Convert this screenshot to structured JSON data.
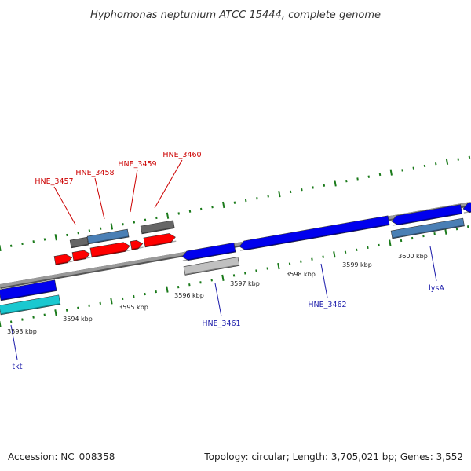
{
  "title": "Hyphomonas neptunium ATCC 15444, complete genome",
  "footer": {
    "accession": "Accession: NC_008358",
    "summary": "Topology: circular; Length: 3,705,021 bp; Genes: 3,552"
  },
  "ticks": [
    "3593 kbp",
    "3594 kbp",
    "3595 kbp",
    "3596 kbp",
    "3597 kbp",
    "3598 kbp",
    "3599 kbp",
    "3600 kbp"
  ],
  "labels": {
    "forward": [
      "HNE_3457",
      "HNE_3458",
      "HNE_3459",
      "HNE_3460"
    ],
    "reverse": [
      "tkt",
      "HNE_3461",
      "HNE_3462",
      "lysA"
    ]
  },
  "colors": {
    "forward_label": "#cc0000",
    "reverse_label": "#1a1aaa",
    "forward_cds": "#ff0000",
    "reverse_cds": "#0000ee",
    "gene_grey": "#666666",
    "steelblue": "#4a7fb5",
    "cyan": "#1ac8d0",
    "light_grey": "#c0c0c0",
    "backbone": "#888888",
    "tick_mark": "#1a7a1a"
  }
}
